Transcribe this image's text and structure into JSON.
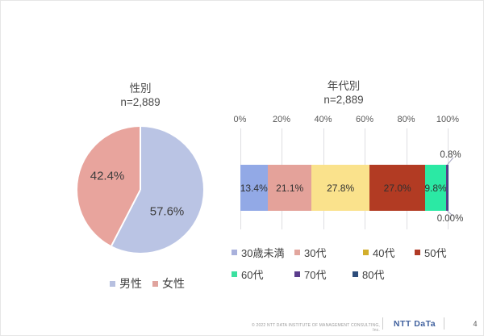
{
  "slide": {
    "footer": {
      "copyright": "© 2022 NTT DATA INSTITUTE OF MANAGEMENT CONSULTING, Inc.",
      "logo": "NTT DaTa",
      "page": "4"
    }
  },
  "chart_data": [
    {
      "type": "pie",
      "title": "性別",
      "subtitle": "n=2,889",
      "categories": [
        "男性",
        "女性"
      ],
      "values": [
        57.6,
        42.4
      ],
      "labels": [
        "57.6%",
        "42.4%"
      ],
      "colors": [
        "#bac4e4",
        "#e8a49d"
      ],
      "legend_colors": [
        "#b7c0e0",
        "#e0a49e"
      ],
      "start_angle_deg": 0,
      "direction": "clockwise",
      "legend_position": "bottom"
    },
    {
      "type": "bar",
      "variant": "horizontal-stacked",
      "title": "年代別",
      "subtitle": "n=2,889",
      "categories": [
        "30歳未満",
        "30代",
        "40代",
        "50代",
        "60代",
        "70代",
        "80代"
      ],
      "values": [
        13.4,
        21.1,
        27.8,
        27.0,
        9.8,
        0.8,
        0.0
      ],
      "labels": [
        "13.4%",
        "21.1%",
        "27.8%",
        "27.0%",
        "9.8%",
        "0.8%",
        "0.00%"
      ],
      "bar_colors": [
        "#92a9e6",
        "#e4a29a",
        "#fae28c",
        "#b23b23",
        "#2be9a4",
        "#5b3d8c",
        "#2d4d7c"
      ],
      "legend_colors": [
        "#a9b1dc",
        "#e2a69e",
        "#d2ae2c",
        "#b03a26",
        "#3ce0a0",
        "#5b3d8c",
        "#2e4d7b"
      ],
      "axis": {
        "ticks": [
          "0%",
          "20%",
          "40%",
          "60%",
          "80%",
          "100%"
        ],
        "min": 0,
        "max": 100,
        "grid": true,
        "position": "top"
      },
      "legend_position": "bottom"
    }
  ]
}
